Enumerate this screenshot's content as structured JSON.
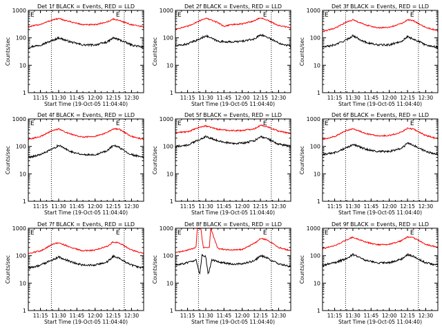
{
  "colors": {
    "events": "#000000",
    "lld": "#ff0000",
    "axis": "#000000",
    "background": "#ffffff"
  },
  "chart_data": [
    {
      "type": "line",
      "title": "Det 1f BLACK = Events, RED = LLD",
      "xlabel": "Start Time (19-Oct-05 11:04:40)",
      "ylabel": "Counts/sec",
      "y_scale": "log",
      "ylim": [
        1,
        1000
      ],
      "xlim": [
        "11:05",
        "12:40"
      ],
      "x_tick_labels": [
        "11:15",
        "11:30",
        "11:45",
        "12:00",
        "12:15",
        "12:30"
      ],
      "y_tick_labels": [
        "1",
        "10",
        "100",
        "1000"
      ],
      "vertical_markers": [
        "11:24",
        "12:24"
      ],
      "marker_labels": [
        "E",
        "E"
      ],
      "grid": false,
      "series": [
        {
          "name": "BLACK = Events",
          "x": [
            "11:05",
            "11:15",
            "11:25",
            "11:30",
            "11:40",
            "11:50",
            "12:00",
            "12:10",
            "12:15",
            "12:20",
            "12:30",
            "12:40"
          ],
          "y": [
            45,
            55,
            80,
            100,
            70,
            55,
            55,
            70,
            100,
            85,
            55,
            45
          ]
        },
        {
          "name": "RED = LLD",
          "x": [
            "11:05",
            "11:15",
            "11:25",
            "11:30",
            "11:40",
            "11:50",
            "12:00",
            "12:10",
            "12:15",
            "12:20",
            "12:30",
            "12:40"
          ],
          "y": [
            250,
            310,
            450,
            500,
            380,
            300,
            300,
            380,
            480,
            430,
            300,
            250
          ]
        }
      ]
    },
    {
      "type": "line",
      "title": "Det 2f BLACK = Events, RED = LLD",
      "xlabel": "Start Time (19-Oct-05 11:04:40)",
      "ylabel": "Counts/sec",
      "y_scale": "log",
      "ylim": [
        1,
        1000
      ],
      "xlim": [
        "11:05",
        "12:40"
      ],
      "x_tick_labels": [
        "11:15",
        "11:30",
        "11:45",
        "12:00",
        "12:15",
        "12:30"
      ],
      "y_tick_labels": [
        "1",
        "10",
        "100",
        "1000"
      ],
      "vertical_markers": [
        "11:24",
        "12:24"
      ],
      "marker_labels": [
        "E",
        "E"
      ],
      "grid": false,
      "series": [
        {
          "name": "BLACK = Events",
          "x": [
            "11:05",
            "11:15",
            "11:25",
            "11:30",
            "11:40",
            "11:50",
            "12:00",
            "12:10",
            "12:15",
            "12:20",
            "12:30",
            "12:40"
          ],
          "y": [
            50,
            60,
            90,
            120,
            75,
            70,
            75,
            90,
            130,
            110,
            65,
            50
          ]
        },
        {
          "name": "RED = LLD",
          "x": [
            "11:05",
            "11:15",
            "11:25",
            "11:30",
            "11:40",
            "11:45",
            "11:50",
            "12:00",
            "12:10",
            "12:15",
            "12:20",
            "12:30",
            "12:40"
          ],
          "y": [
            210,
            260,
            420,
            520,
            360,
            260,
            300,
            320,
            420,
            540,
            450,
            280,
            230
          ]
        }
      ]
    },
    {
      "type": "line",
      "title": "Det 3f BLACK = Events, RED = LLD",
      "xlabel": "Start Time (19-Oct-05 11:04:40)",
      "ylabel": "Counts/sec",
      "y_scale": "log",
      "ylim": [
        1,
        1000
      ],
      "xlim": [
        "11:05",
        "12:40"
      ],
      "x_tick_labels": [
        "11:15",
        "11:30",
        "11:45",
        "12:00",
        "12:15",
        "12:30"
      ],
      "y_tick_labels": [
        "1",
        "10",
        "100",
        "1000"
      ],
      "vertical_markers": [
        "11:24",
        "12:24"
      ],
      "marker_labels": [
        "E",
        "E"
      ],
      "grid": false,
      "series": [
        {
          "name": "BLACK = Events",
          "x": [
            "11:05",
            "11:15",
            "11:25",
            "11:30",
            "11:40",
            "11:50",
            "12:00",
            "12:10",
            "12:15",
            "12:20",
            "12:30",
            "12:40"
          ],
          "y": [
            45,
            55,
            85,
            120,
            70,
            55,
            55,
            75,
            110,
            90,
            55,
            45
          ]
        },
        {
          "name": "RED = LLD",
          "x": [
            "11:05",
            "11:15",
            "11:25",
            "11:30",
            "11:40",
            "11:50",
            "12:00",
            "12:10",
            "12:15",
            "12:20",
            "12:30",
            "12:40"
          ],
          "y": [
            170,
            220,
            380,
            450,
            300,
            230,
            240,
            330,
            450,
            420,
            240,
            180
          ]
        }
      ]
    },
    {
      "type": "line",
      "title": "Det 4f BLACK = Events, RED = LLD",
      "xlabel": "Start Time (19-Oct-05 11:04:40)",
      "ylabel": "Counts/sec",
      "y_scale": "log",
      "ylim": [
        1,
        1000
      ],
      "xlim": [
        "11:05",
        "12:40"
      ],
      "x_tick_labels": [
        "11:15",
        "11:30",
        "11:45",
        "12:00",
        "12:15",
        "12:30"
      ],
      "y_tick_labels": [
        "1",
        "10",
        "100",
        "1000"
      ],
      "vertical_markers": [
        "11:24",
        "12:24"
      ],
      "marker_labels": [
        "E",
        "E"
      ],
      "grid": false,
      "series": [
        {
          "name": "BLACK = Events",
          "x": [
            "11:05",
            "11:15",
            "11:25",
            "11:30",
            "11:40",
            "11:50",
            "12:00",
            "12:10",
            "12:15",
            "12:20",
            "12:30",
            "12:40"
          ],
          "y": [
            40,
            50,
            80,
            110,
            65,
            50,
            50,
            70,
            110,
            90,
            50,
            40
          ]
        },
        {
          "name": "RED = LLD",
          "x": [
            "11:05",
            "11:15",
            "11:25",
            "11:30",
            "11:40",
            "11:50",
            "12:00",
            "12:10",
            "12:15",
            "12:20",
            "12:30",
            "12:40"
          ],
          "y": [
            180,
            230,
            380,
            430,
            280,
            220,
            230,
            320,
            440,
            420,
            230,
            180
          ]
        }
      ]
    },
    {
      "type": "line",
      "title": "Det 5f BLACK = Events, RED = LLD",
      "xlabel": "Start Time (19-Oct-05 11:04:40)",
      "ylabel": "Counts/sec",
      "y_scale": "log",
      "ylim": [
        1,
        1000
      ],
      "xlim": [
        "11:05",
        "12:40"
      ],
      "x_tick_labels": [
        "11:15",
        "11:30",
        "11:45",
        "12:00",
        "12:15",
        "12:30"
      ],
      "y_tick_labels": [
        "1",
        "10",
        "100",
        "1000"
      ],
      "vertical_markers": [
        "11:24",
        "12:24"
      ],
      "marker_labels": [
        "E",
        "E"
      ],
      "grid": false,
      "series": [
        {
          "name": "BLACK = Events",
          "x": [
            "11:05",
            "11:15",
            "11:25",
            "11:30",
            "11:40",
            "11:50",
            "12:00",
            "12:10",
            "12:15",
            "12:20",
            "12:30",
            "12:40"
          ],
          "y": [
            100,
            110,
            180,
            230,
            160,
            130,
            130,
            160,
            230,
            200,
            120,
            100
          ]
        },
        {
          "name": "RED = LLD",
          "x": [
            "11:05",
            "11:15",
            "11:25",
            "11:30",
            "11:40",
            "11:50",
            "12:00",
            "12:10",
            "12:15",
            "12:20",
            "12:30",
            "12:40"
          ],
          "y": [
            320,
            340,
            500,
            560,
            420,
            380,
            380,
            440,
            580,
            540,
            360,
            300
          ]
        }
      ]
    },
    {
      "type": "line",
      "title": "Det 6f BLACK = Events, RED = LLD",
      "xlabel": "Start Time (19-Oct-05 11:04:40)",
      "ylabel": "Counts/sec",
      "y_scale": "log",
      "ylim": [
        1,
        1000
      ],
      "xlim": [
        "11:05",
        "12:40"
      ],
      "x_tick_labels": [
        "11:15",
        "11:30",
        "11:45",
        "12:00",
        "12:15",
        "12:30"
      ],
      "y_tick_labels": [
        "1",
        "10",
        "100",
        "1000"
      ],
      "vertical_markers": [
        "11:24",
        "12:24"
      ],
      "marker_labels": [
        "E",
        "E"
      ],
      "grid": false,
      "series": [
        {
          "name": "BLACK = Events",
          "x": [
            "11:05",
            "11:15",
            "11:25",
            "11:30",
            "11:40",
            "11:50",
            "12:00",
            "12:10",
            "12:15",
            "12:20",
            "12:30",
            "12:40"
          ],
          "y": [
            50,
            60,
            90,
            120,
            80,
            65,
            65,
            85,
            130,
            110,
            65,
            50
          ]
        },
        {
          "name": "RED = LLD",
          "x": [
            "11:05",
            "11:15",
            "11:25",
            "11:30",
            "11:40",
            "11:50",
            "12:00",
            "12:10",
            "12:15",
            "12:20",
            "12:30",
            "12:40"
          ],
          "y": [
            180,
            230,
            380,
            440,
            300,
            240,
            250,
            330,
            460,
            430,
            250,
            190
          ]
        }
      ]
    },
    {
      "type": "line",
      "title": "Det 7f BLACK = Events, RED = LLD",
      "xlabel": "Start Time (19-Oct-05 11:04:40)",
      "ylabel": "Counts/sec",
      "y_scale": "log",
      "ylim": [
        1,
        1000
      ],
      "xlim": [
        "11:05",
        "12:40"
      ],
      "x_tick_labels": [
        "11:15",
        "11:30",
        "11:45",
        "12:00",
        "12:15",
        "12:30"
      ],
      "y_tick_labels": [
        "1",
        "10",
        "100",
        "1000"
      ],
      "vertical_markers": [
        "11:24",
        "12:24"
      ],
      "marker_labels": [
        "E",
        "E"
      ],
      "grid": false,
      "series": [
        {
          "name": "BLACK = Events",
          "x": [
            "11:05",
            "11:15",
            "11:25",
            "11:30",
            "11:40",
            "11:50",
            "12:00",
            "12:10",
            "12:15",
            "12:20",
            "12:30",
            "12:40"
          ],
          "y": [
            35,
            45,
            70,
            90,
            60,
            45,
            45,
            60,
            95,
            80,
            45,
            35
          ]
        },
        {
          "name": "RED = LLD",
          "x": [
            "11:05",
            "11:15",
            "11:25",
            "11:30",
            "11:40",
            "11:50",
            "12:00",
            "12:10",
            "12:15",
            "12:20",
            "12:30",
            "12:40"
          ],
          "y": [
            120,
            150,
            260,
            300,
            200,
            150,
            160,
            220,
            320,
            290,
            160,
            120
          ]
        }
      ]
    },
    {
      "type": "line",
      "title": "Det 8f BLACK = Events, RED = LLD",
      "xlabel": "Start Time (19-Oct-05 11:04:40)",
      "ylabel": "Counts/sec",
      "y_scale": "log",
      "ylim": [
        1,
        1000
      ],
      "xlim": [
        "11:05",
        "12:40"
      ],
      "x_tick_labels": [
        "11:15",
        "11:30",
        "11:45",
        "12:00",
        "12:15",
        "12:30"
      ],
      "y_tick_labels": [
        "1",
        "10",
        "100",
        "1000"
      ],
      "vertical_markers": [
        "11:24",
        "12:24"
      ],
      "marker_labels": [
        "E",
        "E"
      ],
      "grid": false,
      "series": [
        {
          "name": "BLACK = Events",
          "x": [
            "11:05",
            "11:15",
            "11:22",
            "11:25",
            "11:27",
            "11:30",
            "11:32",
            "11:35",
            "11:40",
            "11:50",
            "12:00",
            "12:10",
            "12:15",
            "12:20",
            "12:30",
            "12:40"
          ],
          "y": [
            45,
            55,
            70,
            20,
            110,
            90,
            20,
            70,
            60,
            50,
            50,
            65,
            100,
            85,
            50,
            40
          ]
        },
        {
          "name": "RED = LLD",
          "x": [
            "11:05",
            "11:15",
            "11:22",
            "11:23",
            "11:26",
            "11:27",
            "11:28",
            "11:33",
            "11:34",
            "11:40",
            "11:50",
            "12:00",
            "12:10",
            "12:15",
            "12:20",
            "12:30",
            "12:40"
          ],
          "y": [
            130,
            160,
            200,
            1000,
            1000,
            400,
            200,
            200,
            1000,
            180,
            160,
            170,
            280,
            420,
            390,
            200,
            150
          ]
        }
      ]
    },
    {
      "type": "line",
      "title": "Det 9f BLACK = Events, RED = LLD",
      "xlabel": "Start Time (19-Oct-05 11:04:40)",
      "ylabel": "Counts/sec",
      "y_scale": "log",
      "ylim": [
        1,
        1000
      ],
      "xlim": [
        "11:05",
        "12:40"
      ],
      "x_tick_labels": [
        "11:15",
        "11:30",
        "11:45",
        "12:00",
        "12:15",
        "12:30"
      ],
      "y_tick_labels": [
        "1",
        "10",
        "100",
        "1000"
      ],
      "vertical_markers": [
        "11:24",
        "12:24"
      ],
      "marker_labels": [
        "E",
        "E"
      ],
      "grid": false,
      "series": [
        {
          "name": "BLACK = Events",
          "x": [
            "11:05",
            "11:15",
            "11:25",
            "11:30",
            "11:40",
            "11:50",
            "12:00",
            "12:10",
            "12:15",
            "12:20",
            "12:30",
            "12:40"
          ],
          "y": [
            45,
            55,
            80,
            110,
            70,
            55,
            55,
            75,
            110,
            95,
            55,
            45
          ]
        },
        {
          "name": "RED = LLD",
          "x": [
            "11:05",
            "11:15",
            "11:25",
            "11:30",
            "11:40",
            "11:50",
            "12:00",
            "12:10",
            "12:15",
            "12:20",
            "12:30",
            "12:40"
          ],
          "y": [
            180,
            230,
            380,
            470,
            320,
            250,
            260,
            350,
            480,
            450,
            260,
            200
          ]
        }
      ]
    }
  ]
}
